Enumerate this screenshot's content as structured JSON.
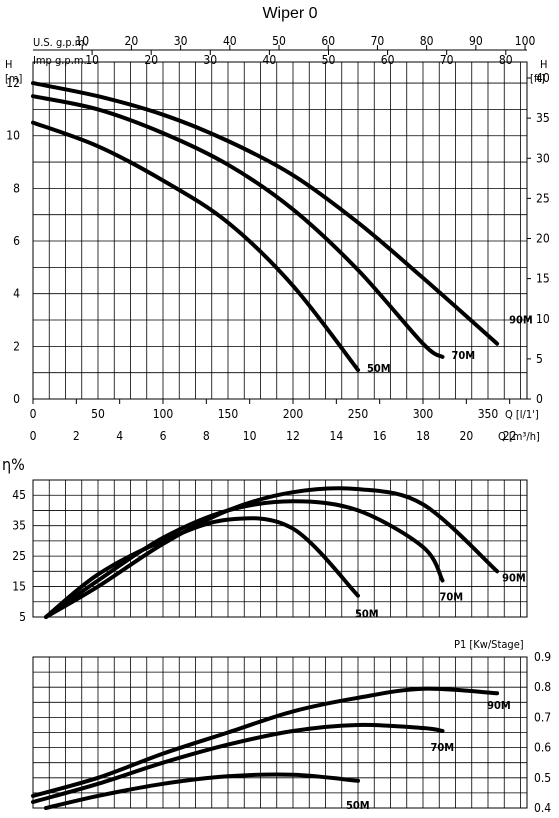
{
  "page_title": "Wiper 0",
  "chart_data": [
    {
      "type": "line",
      "name": "head-curve",
      "x_label": "Q [l/1']",
      "x2_label": "Q [m³/h]",
      "top1_label": "U.S. g.p.m.",
      "top2_label": "Imp g.p.m.",
      "y_left_label": [
        "H",
        "[m]"
      ],
      "y_right_label": [
        "H",
        "[ft]"
      ],
      "xlim": [
        0,
        380
      ],
      "ylim": [
        0,
        12.8
      ],
      "x_ticks": [
        0,
        50,
        100,
        150,
        200,
        250,
        300,
        350
      ],
      "x2_ticks": [
        0,
        2,
        4,
        6,
        8,
        10,
        12,
        14,
        16,
        18,
        20,
        22
      ],
      "usgpm_ticks": [
        10,
        20,
        30,
        40,
        50,
        60,
        70,
        80,
        90,
        100
      ],
      "impgpm_ticks": [
        10,
        20,
        30,
        40,
        50,
        60,
        70,
        80
      ],
      "y_ticks": [
        0,
        2,
        4,
        6,
        8,
        10,
        12
      ],
      "ft_ticks": [
        0,
        5,
        10,
        15,
        20,
        25,
        30,
        35,
        40
      ],
      "grid": true,
      "series": [
        {
          "name": "50M",
          "x": [
            0,
            50,
            100,
            150,
            200,
            250
          ],
          "y": [
            10.5,
            9.6,
            8.3,
            6.7,
            4.3,
            1.1
          ]
        },
        {
          "name": "70M",
          "x": [
            0,
            50,
            100,
            150,
            200,
            250,
            300,
            315
          ],
          "y": [
            11.5,
            11,
            10.1,
            8.9,
            7.2,
            4.9,
            2.1,
            1.6
          ]
        },
        {
          "name": "90M",
          "x": [
            0,
            50,
            100,
            150,
            200,
            250,
            300,
            357
          ],
          "y": [
            12,
            11.5,
            10.8,
            9.8,
            8.5,
            6.7,
            4.6,
            2.1
          ]
        }
      ]
    },
    {
      "type": "line",
      "name": "efficiency-curve",
      "y_label": "η%",
      "ylim": [
        5,
        50
      ],
      "y_ticks": [
        5,
        15,
        25,
        35,
        45
      ],
      "grid": true,
      "series": [
        {
          "name": "50M",
          "x": [
            10,
            50,
            100,
            150,
            200,
            250
          ],
          "y": [
            5,
            19,
            30,
            37,
            34,
            12
          ]
        },
        {
          "name": "70M",
          "x": [
            10,
            50,
            100,
            150,
            200,
            250,
            300,
            315
          ],
          "y": [
            5,
            17,
            31,
            40,
            43,
            40,
            28,
            17
          ]
        },
        {
          "name": "90M",
          "x": [
            10,
            50,
            100,
            150,
            200,
            250,
            300,
            357
          ],
          "y": [
            5,
            15,
            29,
            40,
            46,
            47,
            42,
            20
          ]
        }
      ]
    },
    {
      "type": "line",
      "name": "power-curve",
      "y_label": "P1 [Kw/Stage]",
      "ylim": [
        0.4,
        0.9
      ],
      "y_ticks": [
        0.4,
        0.5,
        0.6,
        0.7,
        0.8,
        0.9
      ],
      "grid": true,
      "series": [
        {
          "name": "50M",
          "x": [
            10,
            50,
            100,
            150,
            200,
            250
          ],
          "y": [
            0.4,
            0.44,
            0.48,
            0.505,
            0.51,
            0.49
          ]
        },
        {
          "name": "70M",
          "x": [
            0,
            50,
            100,
            150,
            200,
            250,
            300,
            315
          ],
          "y": [
            0.42,
            0.48,
            0.55,
            0.61,
            0.655,
            0.675,
            0.665,
            0.655
          ]
        },
        {
          "name": "90M",
          "x": [
            0,
            50,
            100,
            150,
            200,
            250,
            300,
            357
          ],
          "y": [
            0.44,
            0.5,
            0.58,
            0.65,
            0.72,
            0.765,
            0.795,
            0.78
          ]
        }
      ]
    }
  ]
}
